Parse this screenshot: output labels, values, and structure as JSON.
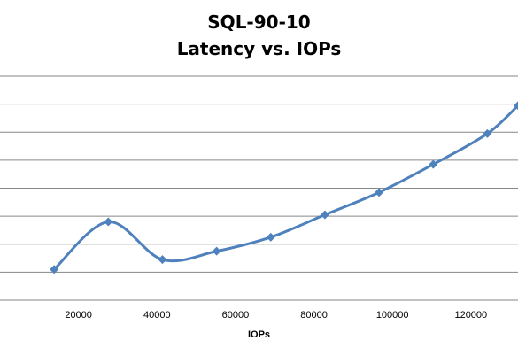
{
  "chart_data": {
    "type": "line",
    "title": "SQL-90-10",
    "subtitle": "Latency vs. IOPs",
    "xlabel": "IOPs",
    "ylabel": "",
    "x_ticks": [
      20000,
      40000,
      60000,
      80000,
      100000,
      120000
    ],
    "x_tick_labels": [
      "20000",
      "40000",
      "60000",
      "80000",
      "100000",
      "120000"
    ],
    "xlim": [
      0,
      132000
    ],
    "ylim": [
      0,
      8
    ],
    "y_gridlines": [
      1,
      2,
      3,
      4,
      5,
      6,
      7,
      8
    ],
    "grid": "horizontal",
    "smooth": true,
    "marker": "diamond",
    "series": [
      {
        "color": "#4F81BD",
        "x": [
          13800,
          27600,
          41400,
          55200,
          69000,
          82800,
          96600,
          110400,
          124200,
          132000
        ],
        "y": [
          1.1,
          2.8,
          1.45,
          1.75,
          2.25,
          3.05,
          3.85,
          4.85,
          5.95,
          6.95
        ]
      }
    ]
  }
}
